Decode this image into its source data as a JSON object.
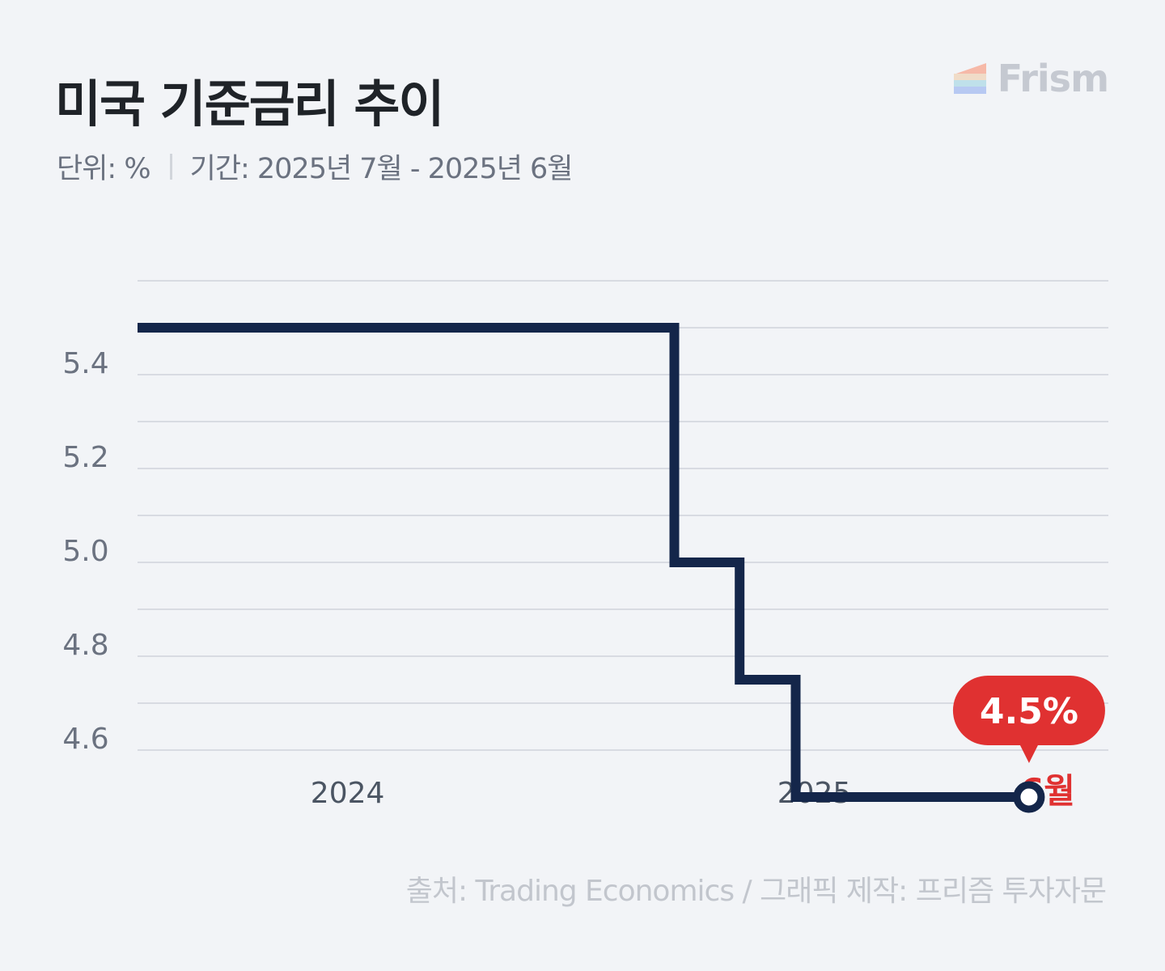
{
  "header": {
    "title": "미국 기준금리 추이",
    "unit_label": "단위: %",
    "period_label": "기간: 2025년 7월 - 2025년 6월"
  },
  "brand": {
    "name": "Frism",
    "logo_icon": "frism-logo-icon"
  },
  "footer": {
    "source": "출처: Trading Economics  / 그래픽 제작: 프리즘 투자자문"
  },
  "colors": {
    "line": "#14264a",
    "accent": "#e03131",
    "grid": "#d8dbe2",
    "tick": "#6b7280"
  },
  "chart_data": {
    "type": "line",
    "step": true,
    "x_axis": "time (year)",
    "xlim": [
      2023.45,
      2025.53
    ],
    "ylim": [
      4.6,
      5.6
    ],
    "yticks": [
      4.6,
      4.8,
      5.0,
      5.2,
      5.4
    ],
    "ytick_labels": [
      "4.6",
      "4.8",
      "5.0",
      "5.2",
      "5.4"
    ],
    "xticks": [
      {
        "value": 2023.9,
        "label": "2024",
        "highlight": false
      },
      {
        "value": 2024.9,
        "label": "2025",
        "highlight": false
      },
      {
        "value": 2025.4,
        "label": "6월",
        "highlight": true
      }
    ],
    "grid": true,
    "series": [
      {
        "values": [
          {
            "x": 2023.45,
            "y": 5.5
          },
          {
            "x": 2024.6,
            "y": 5.5
          },
          {
            "x": 2024.6,
            "y": 5.0
          },
          {
            "x": 2024.74,
            "y": 5.0
          },
          {
            "x": 2024.74,
            "y": 4.75
          },
          {
            "x": 2024.86,
            "y": 4.75
          },
          {
            "x": 2024.86,
            "y": 4.5
          },
          {
            "x": 2025.36,
            "y": 4.5
          }
        ]
      }
    ],
    "annotation": {
      "x": 2025.36,
      "y": 4.5,
      "label": "4.5%"
    }
  }
}
